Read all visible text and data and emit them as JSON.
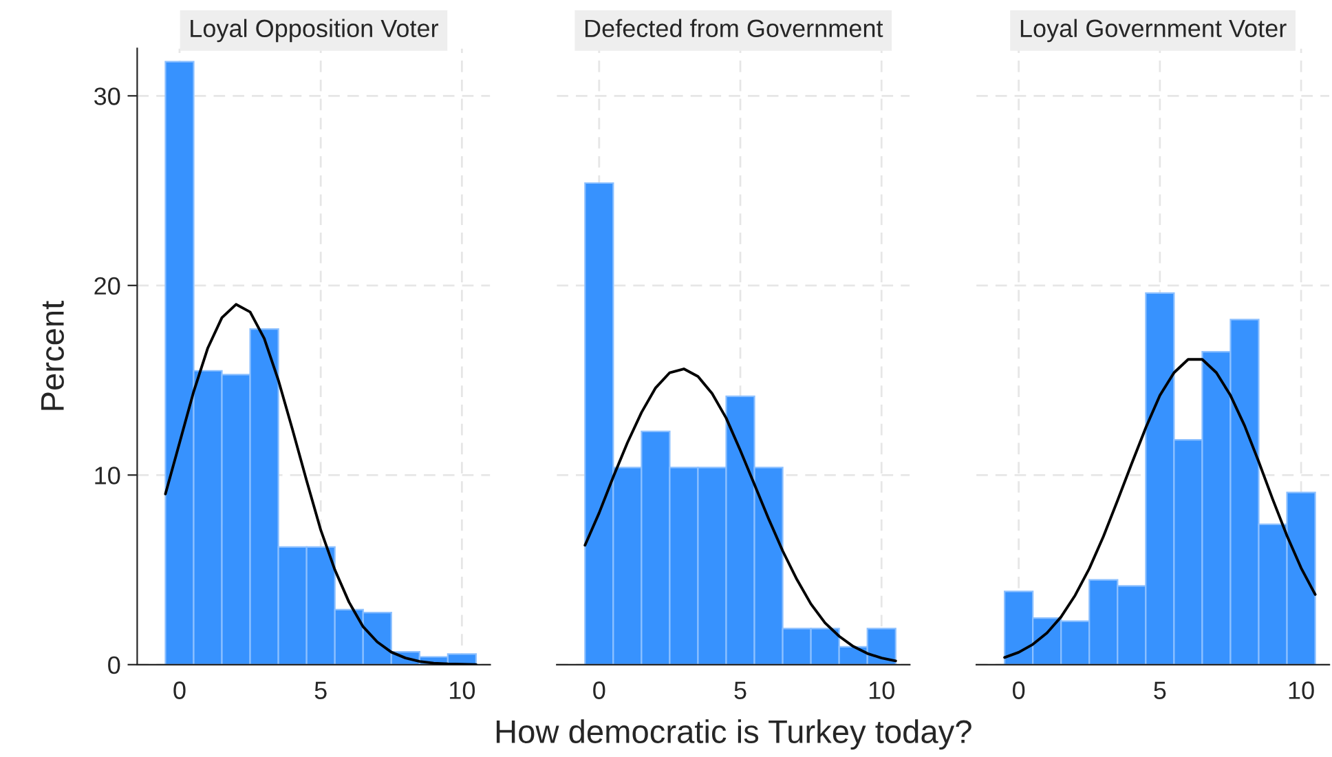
{
  "chart_data": [
    {
      "type": "histogram",
      "title": "Loyal Opposition Voter",
      "ylabel": "Percent",
      "bins": [
        -0.5,
        0.5,
        1.5,
        2.5,
        3.5,
        4.5,
        5.5,
        6.5,
        7.5,
        8.5,
        9.5,
        10.5
      ],
      "xlim": [
        -1.5,
        11
      ],
      "xticks": [
        0,
        5,
        10
      ],
      "ylim": [
        0,
        32.5
      ],
      "yticks": [
        0,
        10,
        20,
        30
      ],
      "grid": true,
      "series": [
        {
          "color": "#3792fe",
          "values": [
            31.8,
            15.5,
            15.3,
            17.7,
            6.2,
            6.2,
            2.9,
            2.75,
            0.68,
            0.41,
            0.56
          ]
        },
        {
          "type": "line",
          "color": "#000000",
          "x": [
            -0.5,
            0,
            0.5,
            1,
            1.5,
            2,
            2.5,
            3,
            3.5,
            4,
            4.5,
            5,
            5.5,
            6,
            6.5,
            7,
            7.5,
            8,
            8.5,
            9,
            9.5,
            10,
            10.5
          ],
          "values": [
            9.0,
            11.7,
            14.4,
            16.7,
            18.3,
            19.0,
            18.6,
            17.2,
            15.0,
            12.4,
            9.7,
            7.1,
            5.0,
            3.3,
            2.0,
            1.2,
            0.66,
            0.35,
            0.17,
            0.08,
            0.04,
            0.02,
            0.0
          ]
        }
      ]
    },
    {
      "type": "histogram",
      "title": "Defected from Government",
      "xlabel": "How democratic is Turkey today?",
      "bins": [
        -0.5,
        0.5,
        1.5,
        2.5,
        3.5,
        4.5,
        5.5,
        6.5,
        7.5,
        8.5,
        9.5,
        10.5
      ],
      "xlim": [
        -1.5,
        11
      ],
      "xticks": [
        0,
        5,
        10
      ],
      "ylim": [
        0,
        32.5
      ],
      "yticks": [
        0,
        10,
        20,
        30
      ],
      "grid": true,
      "tick_labels": "x",
      "series": [
        {
          "color": "#3792fe",
          "values": [
            25.4,
            10.4,
            12.3,
            10.4,
            10.4,
            14.15,
            10.4,
            1.9,
            1.9,
            0.94,
            1.9
          ]
        },
        {
          "type": "line",
          "color": "#000000",
          "x": [
            -0.5,
            0,
            0.5,
            1,
            1.5,
            2,
            2.5,
            3,
            3.5,
            4,
            4.5,
            5,
            5.5,
            6,
            6.5,
            7,
            7.5,
            8,
            8.5,
            9,
            9.5,
            10,
            10.5
          ],
          "values": [
            6.3,
            8.0,
            9.9,
            11.7,
            13.3,
            14.6,
            15.4,
            15.6,
            15.2,
            14.3,
            13.0,
            11.3,
            9.5,
            7.7,
            6.0,
            4.5,
            3.2,
            2.2,
            1.5,
            0.96,
            0.59,
            0.35,
            0.2
          ]
        }
      ]
    },
    {
      "type": "histogram",
      "title": "Loyal Government Voter",
      "bins": [
        -0.5,
        0.5,
        1.5,
        2.5,
        3.5,
        4.5,
        5.5,
        6.5,
        7.5,
        8.5,
        9.5,
        10.5
      ],
      "xlim": [
        -1.5,
        11
      ],
      "xticks": [
        0,
        5,
        10
      ],
      "ylim": [
        0,
        32.5
      ],
      "yticks": [
        0,
        10,
        20,
        30
      ],
      "grid": true,
      "tick_labels": "x",
      "series": [
        {
          "color": "#3792fe",
          "values": [
            3.86,
            2.46,
            2.29,
            4.47,
            4.15,
            19.6,
            11.86,
            16.5,
            18.2,
            7.4,
            9.08
          ]
        },
        {
          "type": "line",
          "color": "#000000",
          "x": [
            -0.5,
            0,
            0.5,
            1,
            1.5,
            2,
            2.5,
            3,
            3.5,
            4,
            4.5,
            5,
            5.5,
            6,
            6.5,
            7,
            7.5,
            8,
            8.5,
            9,
            9.5,
            10,
            10.5
          ],
          "values": [
            0.38,
            0.65,
            1.07,
            1.67,
            2.52,
            3.66,
            5.07,
            6.76,
            8.66,
            10.6,
            12.5,
            14.2,
            15.4,
            16.1,
            16.1,
            15.4,
            14.2,
            12.6,
            10.7,
            8.7,
            6.8,
            5.1,
            3.7
          ]
        }
      ]
    }
  ]
}
